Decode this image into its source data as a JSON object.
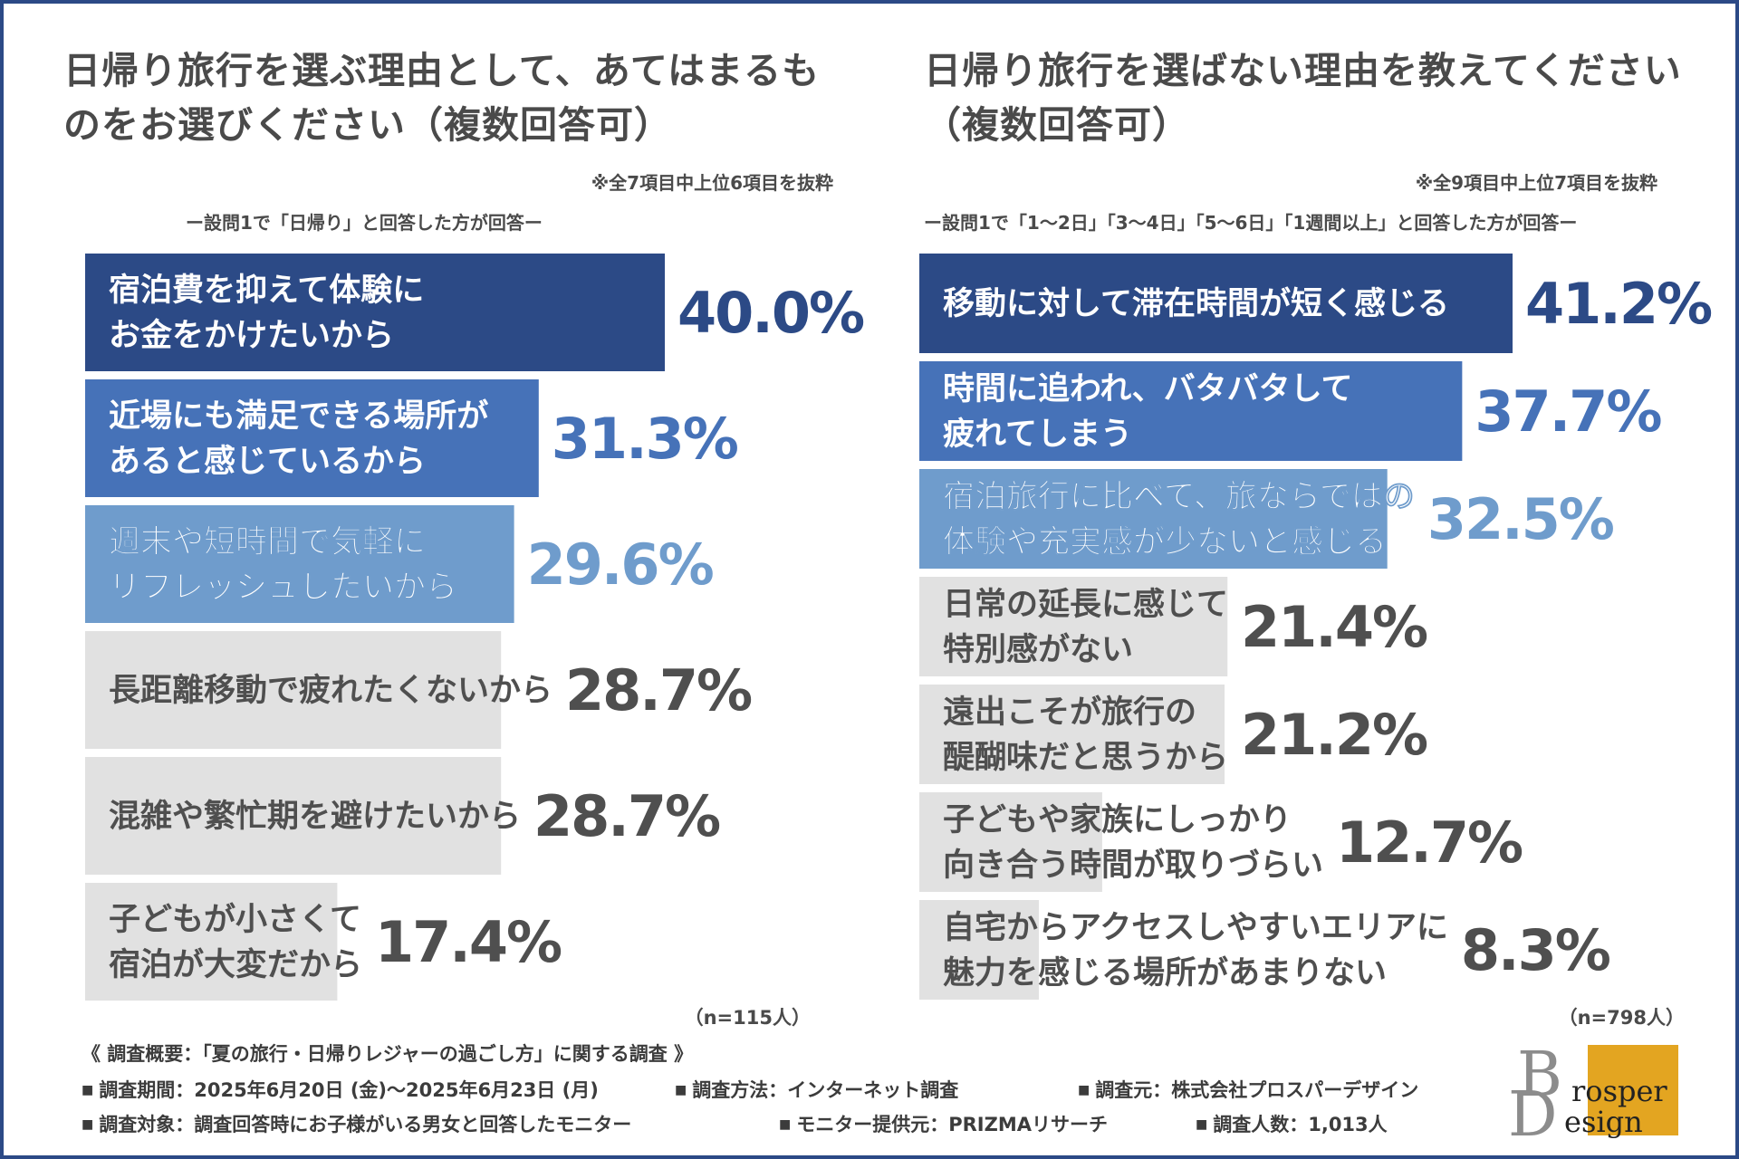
{
  "colors": {
    "dark_blue": "#2c4a86",
    "mid_blue": "#4672b8",
    "light_blue": "#6f9ccc",
    "gray_bar": "#e1e1e1",
    "gray_text": "#4f4f4f",
    "frame": "#2c4a86",
    "logo_gold": "#e3a521"
  },
  "left": {
    "title": "日帰り旅行を選ぶ理由として、あてはまるものをお選びください（複数回答可）",
    "note": "※全7項目中上位6項目を抜粋",
    "subnote": "ー設問1で「日帰り」と回答した方が回答ー",
    "n": "（n=115人）"
  },
  "right": {
    "title": "日帰り旅行を選ばない理由を教えてください（複数回答可）",
    "note": "※全9項目中上位7項目を抜粋",
    "subnote": "ー設問1で「1～2日」「3～4日」「5～6日」「1週間以上」と回答した方が回答ー",
    "n": "（n=798人）"
  },
  "chart_data": [
    {
      "type": "bar",
      "orientation": "horizontal",
      "title": "日帰り旅行を選ぶ理由として、あてはまるものをお選びください（複数回答可）",
      "unit": "%",
      "categories": [
        "宿泊費を抑えて体験にお金をかけたいから",
        "近場にも満足できる場所があると感じているから",
        "週末や短時間で気軽にリフレッシュしたいから",
        "長距離移動で疲れたくないから",
        "混雑や繁忙期を避けたいから",
        "子どもが小さくて宿泊が大変だから"
      ],
      "label_lines": [
        [
          "宿泊費を抑えて体験に",
          "お金をかけたいから"
        ],
        [
          "近場にも満足できる場所が",
          "あると感じているから"
        ],
        [
          "週末や短時間で気軽に",
          "リフレッシュしたいから"
        ],
        [
          "長距離移動で疲れたくないから"
        ],
        [
          "混雑や繁忙期を避けたいから"
        ],
        [
          "子どもが小さくて",
          "宿泊が大変だから"
        ]
      ],
      "values": [
        40.0,
        31.3,
        29.6,
        28.7,
        28.7,
        17.4
      ],
      "value_labels": [
        "40.0%",
        "31.3%",
        "29.6%",
        "28.7%",
        "28.7%",
        "17.4%"
      ],
      "xlim": [
        0,
        40.0
      ]
    },
    {
      "type": "bar",
      "orientation": "horizontal",
      "title": "日帰り旅行を選ばない理由を教えてください（複数回答可）",
      "unit": "%",
      "categories": [
        "移動に対して滞在時間が短く感じる",
        "時間に追われ、バタバタして疲れてしまう",
        "宿泊旅行に比べて、旅ならではの体験や充実感が少ないと感じる",
        "日常の延長に感じて特別感がない",
        "遠出こそが旅行の醍醐味だと思うから",
        "子どもや家族にしっかり向き合う時間が取りづらい",
        "自宅からアクセスしやすいエリアに魅力を感じる場所があまりない"
      ],
      "label_lines": [
        [
          "移動に対して滞在時間が短く感じる"
        ],
        [
          "時間に追われ、バタバタして",
          "疲れてしまう"
        ],
        [
          "宿泊旅行に比べて、旅ならではの",
          "体験や充実感が少ないと感じる"
        ],
        [
          "日常の延長に感じて",
          "特別感がない"
        ],
        [
          "遠出こそが旅行の",
          "醍醐味だと思うから"
        ],
        [
          "子どもや家族にしっかり",
          "向き合う時間が取りづらい"
        ],
        [
          "自宅からアクセスしやすいエリアに",
          "魅力を感じる場所があまりない"
        ]
      ],
      "values": [
        41.2,
        37.7,
        32.5,
        21.4,
        21.2,
        12.7,
        8.3
      ],
      "value_labels": [
        "41.2%",
        "37.7%",
        "32.5%",
        "21.4%",
        "21.2%",
        "12.7%",
        "8.3%"
      ],
      "xlim": [
        0,
        41.2
      ]
    }
  ],
  "footer": {
    "survey_title": "《 調査概要：「夏の旅行・日帰りレジャーの過ごし方」に関する調査 》",
    "period": "調査期間：2025年6月20日 (金)～2025年6月23日 (月)",
    "method": "調査方法：インターネット調査",
    "source": "調査元：株式会社プロスパーデザイン",
    "target": "調査対象：調査回答時にお子様がいる男女と回答したモニター",
    "provider": "モニター提供元：PRIZMAリサーチ",
    "respondents": "調査人数：1,013人"
  },
  "logo": {
    "big_letter_top": "B",
    "big_letter_bottom": "D",
    "word_top": "rosper",
    "word_bottom": "esign"
  }
}
